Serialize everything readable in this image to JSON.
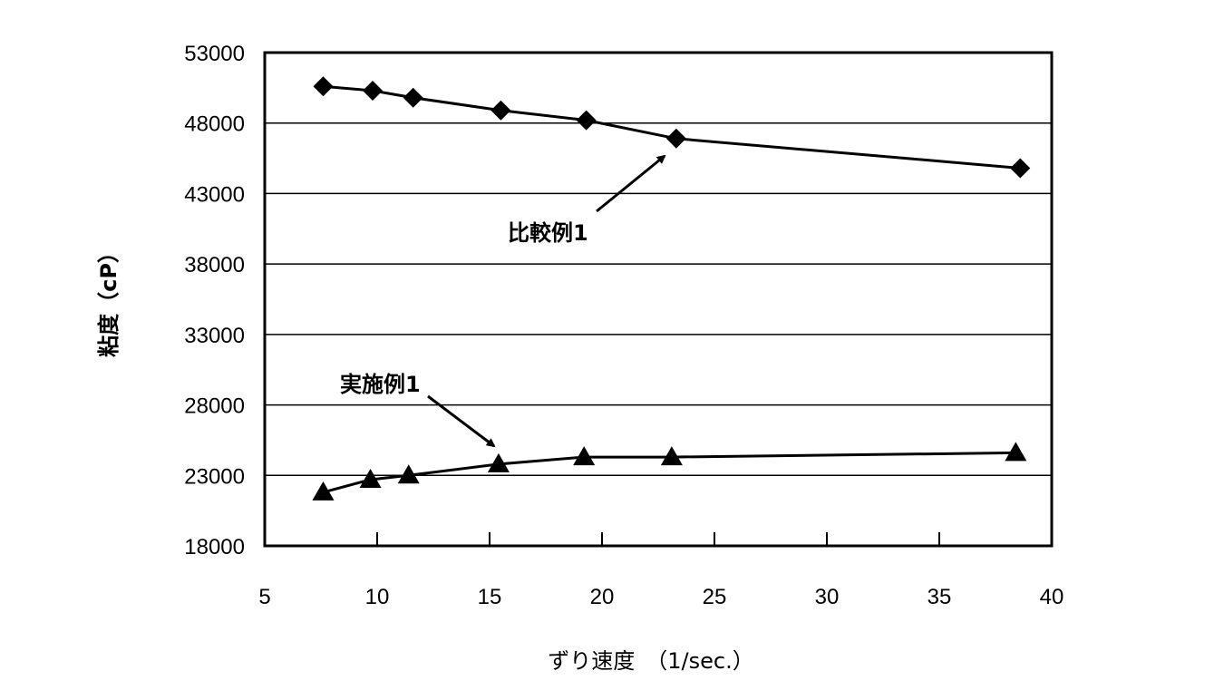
{
  "chart_data": {
    "type": "line",
    "title": "",
    "xlabel": "ずり速度　（1/sec.）",
    "ylabel": "粘度（cP）",
    "xlim": [
      5,
      40
    ],
    "ylim": [
      18000,
      53000
    ],
    "x_ticks": [
      5,
      10,
      15,
      20,
      25,
      30,
      35,
      40
    ],
    "y_ticks": [
      18000,
      23000,
      28000,
      33000,
      38000,
      43000,
      48000,
      53000
    ],
    "grid": {
      "horizontal": true,
      "vertical": false
    },
    "legend": null,
    "series": [
      {
        "name": "比較例1",
        "marker": "diamond",
        "color": "#000000",
        "x": [
          7.6,
          9.8,
          11.6,
          15.5,
          19.3,
          23.3,
          38.6
        ],
        "y": [
          50600,
          50300,
          49800,
          48900,
          48200,
          46900,
          44800
        ]
      },
      {
        "name": "実施例1",
        "marker": "triangle",
        "color": "#000000",
        "x": [
          7.6,
          9.7,
          11.4,
          15.4,
          19.2,
          23.1,
          38.4
        ],
        "y": [
          21800,
          22700,
          23000,
          23800,
          24300,
          24300,
          24600
        ]
      }
    ],
    "annotations": [
      {
        "text": "比較例1",
        "label_at": [
          560,
          265
        ],
        "arrow_from": [
          658,
          233
        ],
        "arrow_to": [
          733,
          172
        ]
      },
      {
        "text": "実施例1",
        "label_at": [
          375,
          432
        ],
        "arrow_from": [
          472,
          437
        ],
        "arrow_to": [
          545,
          492
        ]
      }
    ]
  }
}
